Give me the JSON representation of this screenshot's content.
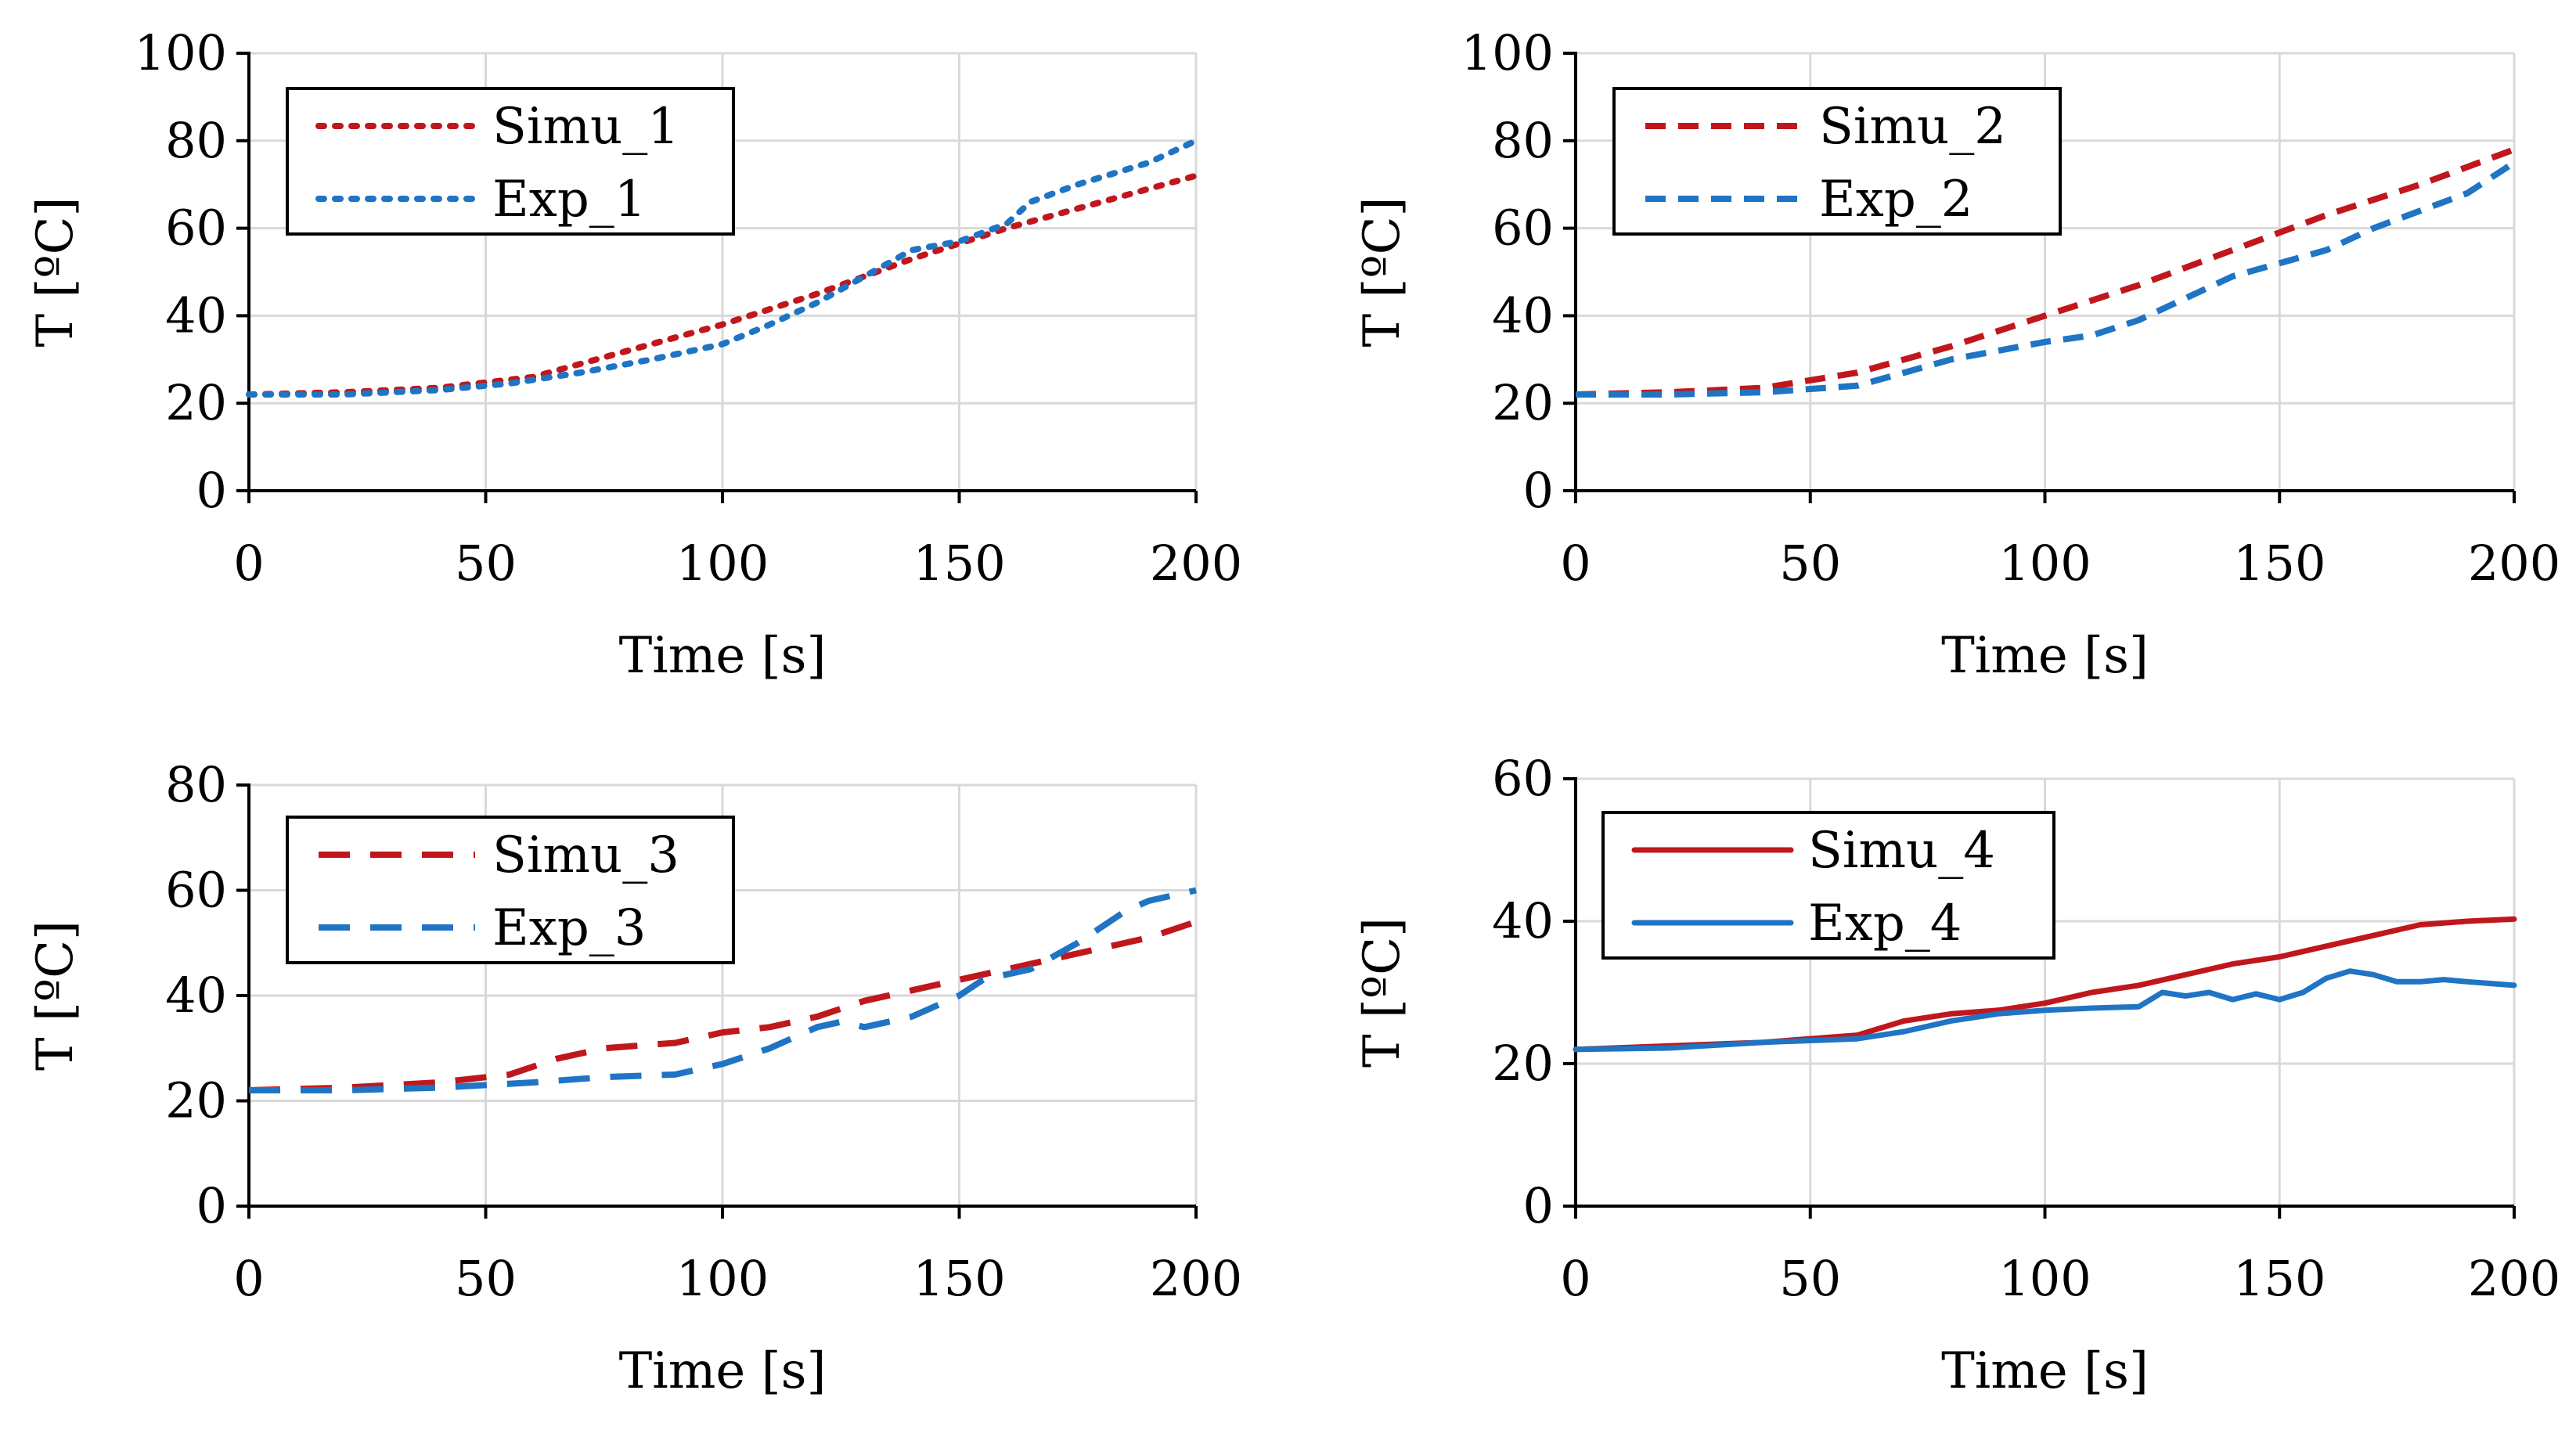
{
  "colors": {
    "simu": "#c0171c",
    "exp": "#1f74c4"
  },
  "chart_data": [
    {
      "type": "line",
      "xlabel": "Time [s]",
      "ylabel": "T [ºC]",
      "xlim": [
        0,
        200
      ],
      "ylim": [
        0,
        100
      ],
      "xticks": [
        0,
        50,
        100,
        150,
        200
      ],
      "yticks": [
        0,
        20,
        40,
        60,
        80,
        100
      ],
      "legend_position": "top-left",
      "line_style": "dotted",
      "series": [
        {
          "name": "Simu_1",
          "color_key": "simu",
          "x": [
            0,
            20,
            40,
            60,
            80,
            100,
            120,
            140,
            160,
            180,
            200
          ],
          "values": [
            22,
            22.5,
            23.5,
            26,
            32,
            38,
            45,
            53,
            60,
            66,
            72
          ]
        },
        {
          "name": "Exp_1",
          "color_key": "exp",
          "x": [
            0,
            20,
            40,
            55,
            70,
            85,
            100,
            110,
            120,
            130,
            140,
            150,
            160,
            165,
            175,
            190,
            200
          ],
          "values": [
            22,
            22,
            23,
            24.5,
            27,
            30,
            33.5,
            38,
            43,
            49,
            55,
            57,
            61,
            66,
            70,
            75,
            80
          ]
        }
      ]
    },
    {
      "type": "line",
      "xlabel": "Time [s]",
      "ylabel": "T [ºC]",
      "xlim": [
        0,
        200
      ],
      "ylim": [
        0,
        100
      ],
      "xticks": [
        0,
        50,
        100,
        150,
        200
      ],
      "yticks": [
        0,
        20,
        40,
        60,
        80,
        100
      ],
      "legend_position": "top-left",
      "line_style": "dashed-short",
      "series": [
        {
          "name": "Simu_2",
          "color_key": "simu",
          "x": [
            0,
            20,
            40,
            60,
            80,
            100,
            120,
            140,
            160,
            180,
            200
          ],
          "values": [
            22,
            22.5,
            23.5,
            27,
            33,
            40,
            47,
            55,
            63,
            70,
            78
          ]
        },
        {
          "name": "Exp_2",
          "color_key": "exp",
          "x": [
            0,
            20,
            40,
            60,
            70,
            80,
            90,
            100,
            110,
            120,
            130,
            140,
            150,
            160,
            170,
            180,
            190,
            200
          ],
          "values": [
            22,
            22,
            22.5,
            24,
            27,
            30,
            32,
            34,
            35.5,
            39,
            44,
            49,
            52,
            55,
            60,
            64,
            68,
            75
          ]
        }
      ]
    },
    {
      "type": "line",
      "xlabel": "Time [s]",
      "ylabel": "T [ºC]",
      "xlim": [
        0,
        200
      ],
      "ylim": [
        0,
        80
      ],
      "xticks": [
        0,
        50,
        100,
        150,
        200
      ],
      "yticks": [
        0,
        20,
        40,
        60,
        80
      ],
      "legend_position": "top-left",
      "line_style": "dashed-long",
      "series": [
        {
          "name": "Simu_3",
          "color_key": "simu",
          "x": [
            0,
            20,
            40,
            55,
            65,
            75,
            90,
            100,
            110,
            120,
            130,
            140,
            150,
            160,
            170,
            180,
            190,
            200
          ],
          "values": [
            22,
            22.5,
            23.5,
            25,
            28,
            30,
            31,
            33,
            34,
            36,
            39,
            41,
            43,
            45,
            47,
            49,
            51,
            54
          ]
        },
        {
          "name": "Exp_3",
          "color_key": "exp",
          "x": [
            0,
            20,
            40,
            60,
            75,
            90,
            100,
            110,
            120,
            125,
            130,
            140,
            150,
            155,
            165,
            175,
            185,
            190,
            200
          ],
          "values": [
            22,
            22,
            22.5,
            23.5,
            24.5,
            25,
            27,
            30,
            34,
            35,
            34,
            36,
            40,
            43,
            45,
            50,
            56,
            58,
            60
          ]
        }
      ]
    },
    {
      "type": "line",
      "xlabel": "Time [s]",
      "ylabel": "T [ºC]",
      "xlim": [
        0,
        200
      ],
      "ylim": [
        0,
        60
      ],
      "xticks": [
        0,
        50,
        100,
        150,
        200
      ],
      "yticks": [
        0,
        20,
        40,
        60
      ],
      "legend_position": "top-left",
      "line_style": "solid",
      "series": [
        {
          "name": "Simu_4",
          "color_key": "simu",
          "x": [
            0,
            20,
            40,
            60,
            70,
            80,
            90,
            100,
            110,
            120,
            130,
            140,
            150,
            160,
            170,
            180,
            190,
            200
          ],
          "values": [
            22,
            22.5,
            23,
            24,
            26,
            27,
            27.5,
            28.5,
            30,
            31,
            32.5,
            34,
            35,
            36.5,
            38,
            39.5,
            40,
            40.3
          ]
        },
        {
          "name": "Exp_4",
          "color_key": "exp",
          "x": [
            0,
            20,
            40,
            60,
            70,
            80,
            90,
            100,
            110,
            120,
            125,
            130,
            135,
            140,
            145,
            150,
            155,
            160,
            165,
            170,
            175,
            180,
            185,
            190,
            200
          ],
          "values": [
            22,
            22.2,
            23,
            23.5,
            24.5,
            26,
            27,
            27.5,
            27.8,
            28,
            30,
            29.5,
            30,
            29,
            29.8,
            29,
            30,
            32,
            33,
            32.5,
            31.5,
            31.5,
            31.8,
            31.5,
            31
          ]
        }
      ]
    }
  ]
}
